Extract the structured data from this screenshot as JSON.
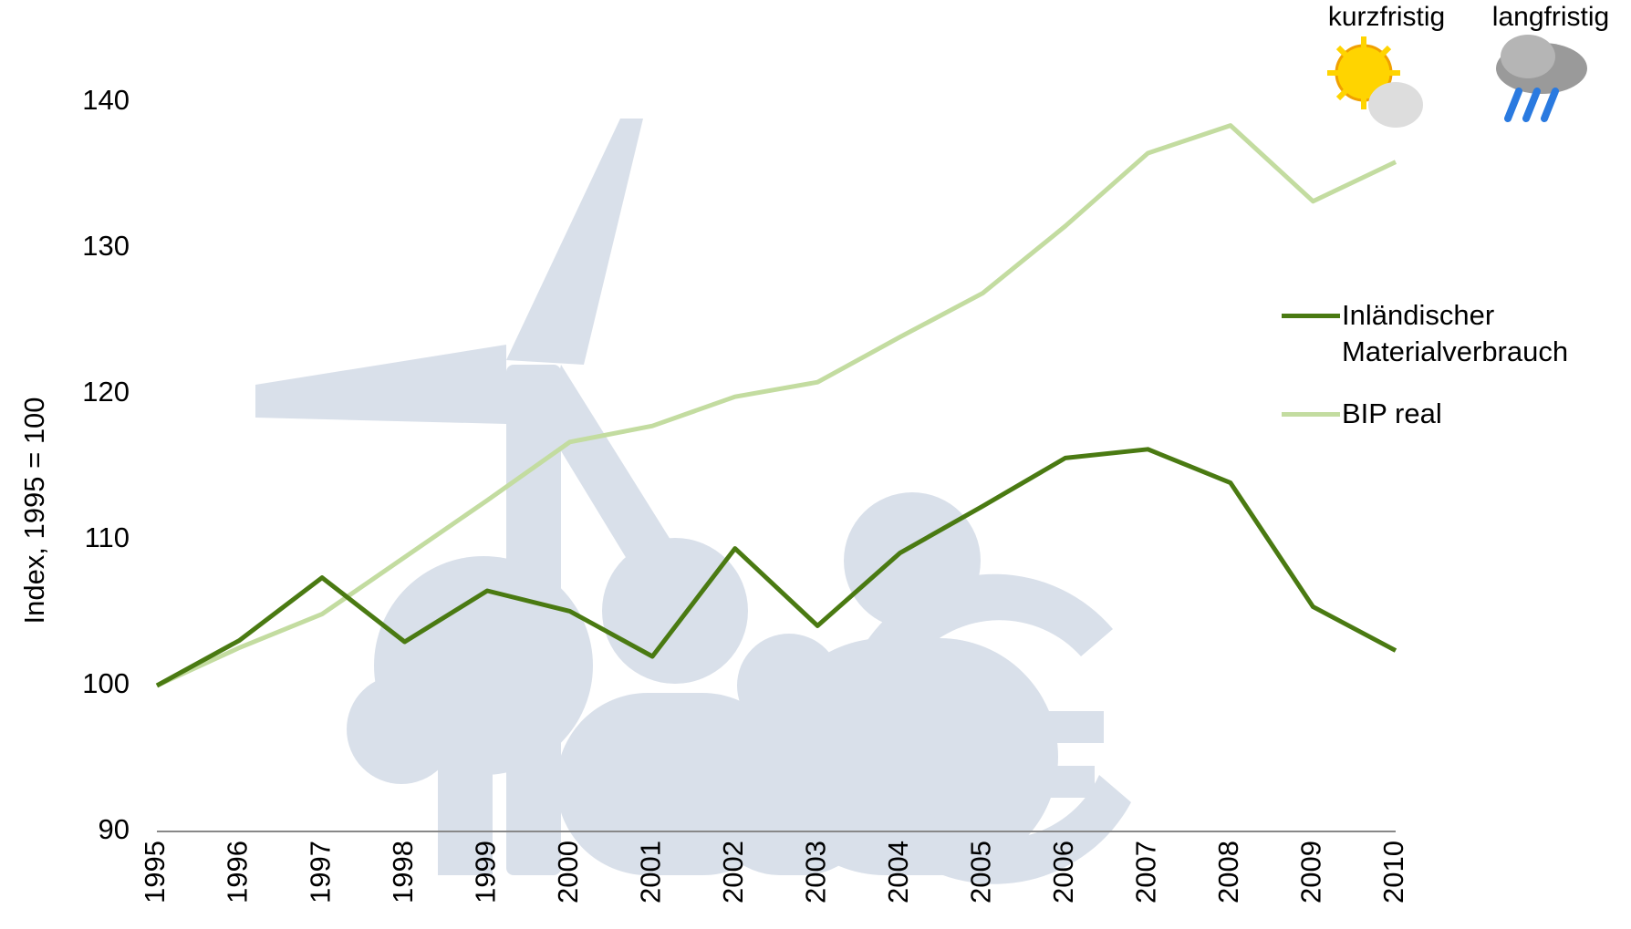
{
  "chart_data": {
    "type": "line",
    "y_label": "Index, 1995 = 100",
    "categories": [
      "1995",
      "1996",
      "1997",
      "1998",
      "1999",
      "2000",
      "2001",
      "2002",
      "2003",
      "2004",
      "2005",
      "2006",
      "2007",
      "2008",
      "2009",
      "2010"
    ],
    "series": [
      {
        "name": "Inländischer Materialverbrauch",
        "color": "#4a7a12",
        "values": [
          100,
          103.1,
          107.4,
          103.0,
          106.5,
          105.1,
          102.0,
          109.4,
          104.1,
          109.1,
          112.3,
          115.6,
          116.2,
          113.9,
          105.4,
          102.4
        ]
      },
      {
        "name": "BIP real",
        "color": "#c3dca0",
        "values": [
          100,
          102.6,
          104.9,
          108.8,
          112.7,
          116.7,
          117.8,
          119.8,
          120.8,
          123.9,
          126.9,
          131.5,
          136.5,
          138.4,
          133.2,
          135.9
        ]
      }
    ],
    "ylim": [
      90,
      145
    ],
    "yticks": [
      90,
      100,
      110,
      120,
      130,
      140
    ],
    "grid": false,
    "legend": "right",
    "outlook": {
      "short_term": "kurzfristig",
      "long_term": "langfristig"
    }
  }
}
